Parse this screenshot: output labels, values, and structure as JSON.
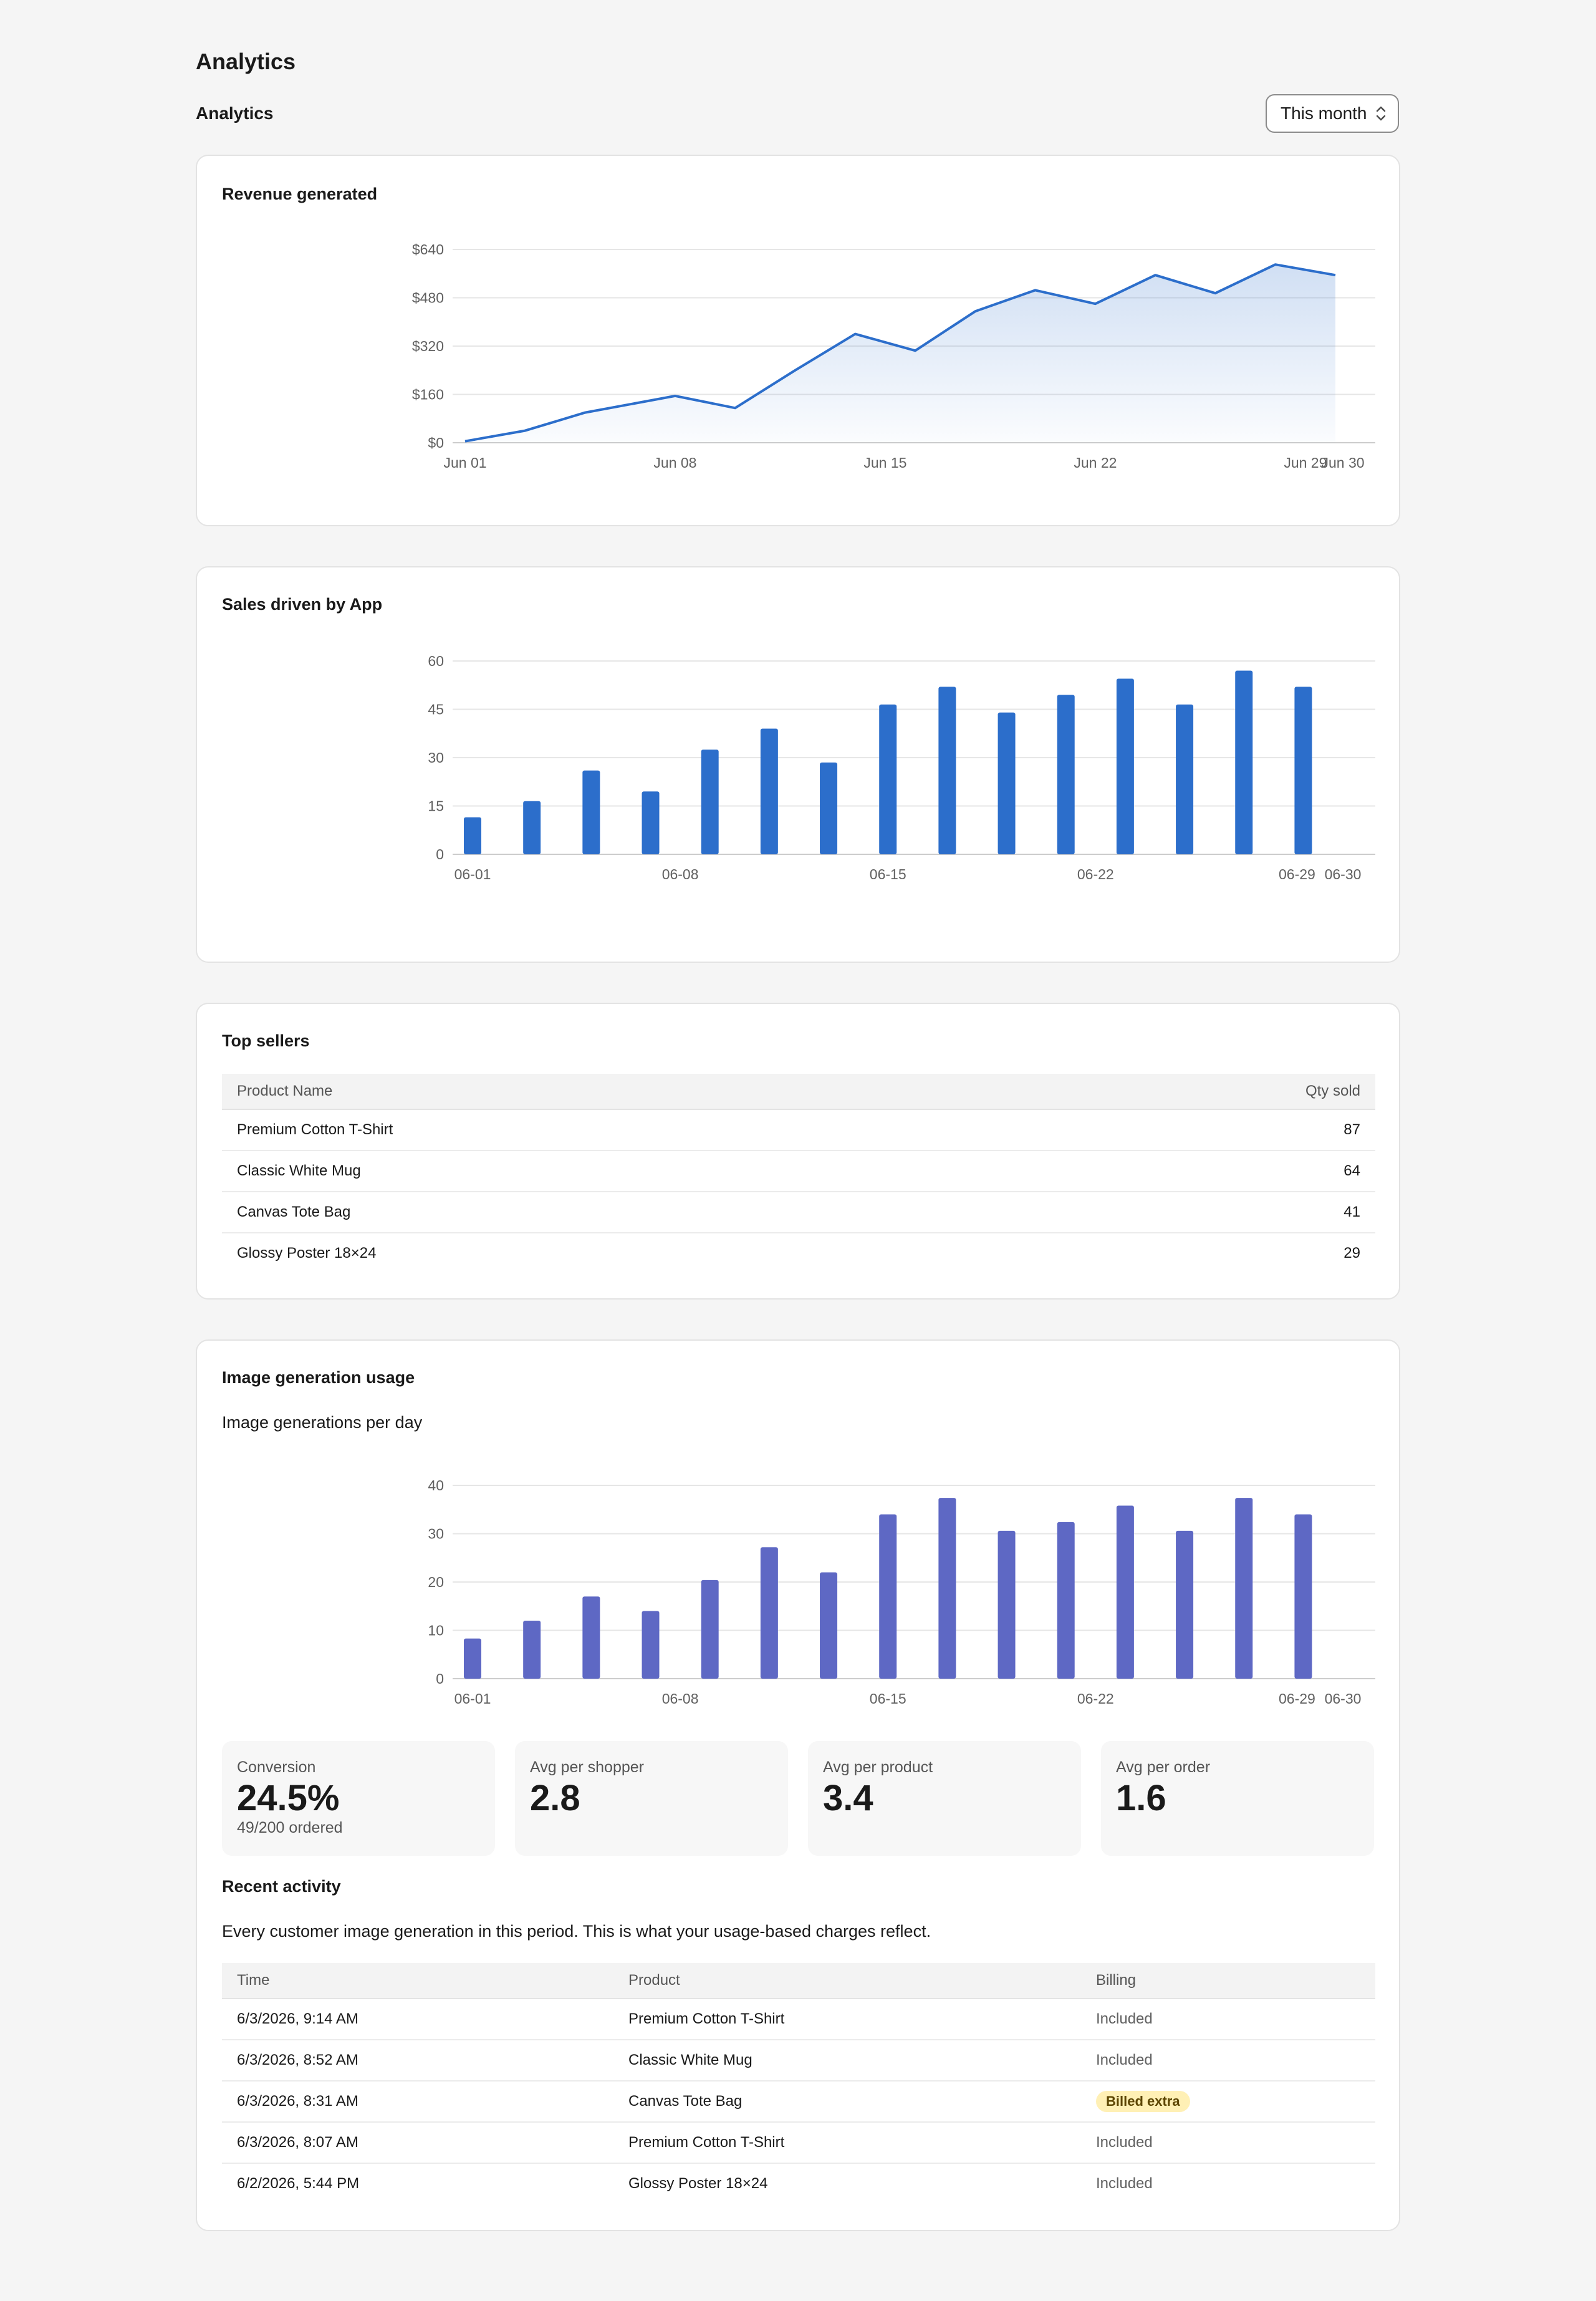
{
  "page": {
    "title": "Analytics",
    "section_title": "Analytics",
    "period": {
      "selected": "This month"
    }
  },
  "revenue": {
    "title": "Revenue generated",
    "chart_data": {
      "type": "area",
      "x": [
        "Jun 01",
        "Jun 03",
        "Jun 05",
        "Jun 08",
        "Jun 10",
        "Jun 12",
        "Jun 14",
        "Jun 16",
        "Jun 18",
        "Jun 20",
        "Jun 22",
        "Jun 24",
        "Jun 26",
        "Jun 28",
        "Jun 30"
      ],
      "values": [
        5,
        40,
        100,
        155,
        115,
        240,
        360,
        305,
        435,
        505,
        460,
        555,
        495,
        590,
        555
      ],
      "ylim": [
        0,
        640
      ],
      "yticks": [
        "$0",
        "$160",
        "$320",
        "$480",
        "$640"
      ],
      "xticks": [
        "Jun 01",
        "Jun 08",
        "Jun 15",
        "Jun 22",
        "Jun 29",
        "Jun 30"
      ],
      "color": "#2c6ecb",
      "grid": true
    }
  },
  "sales": {
    "title": "Sales driven by App",
    "chart_data": {
      "type": "bar",
      "categories": [
        "06-01",
        "06-03",
        "06-05",
        "06-07",
        "06-09",
        "06-11",
        "06-13",
        "06-15",
        "06-17",
        "06-19",
        "06-21",
        "06-23",
        "06-25",
        "06-27",
        "06-29"
      ],
      "values": [
        11.5,
        16.5,
        26,
        19.5,
        32.5,
        39,
        28.5,
        46.5,
        52,
        44,
        49.5,
        54.5,
        46.5,
        57,
        52
      ],
      "ylim": [
        0,
        60
      ],
      "yticks": [
        "0",
        "15",
        "30",
        "45",
        "60"
      ],
      "xticks": [
        "06-01",
        "06-08",
        "06-15",
        "06-22",
        "06-29",
        "06-30"
      ],
      "color": "#2c6ecb",
      "grid": true
    }
  },
  "top_sellers": {
    "title": "Top sellers",
    "columns": [
      "Product Name",
      "Qty sold"
    ],
    "rows": [
      [
        "Premium Cotton T-Shirt",
        "87"
      ],
      [
        "Classic White Mug",
        "64"
      ],
      [
        "Canvas Tote Bag",
        "41"
      ],
      [
        "Glossy Poster 18×24",
        "29"
      ]
    ]
  },
  "image_usage": {
    "title": "Image generation usage",
    "subtitle": "Image generations per day",
    "chart_data": {
      "type": "bar",
      "categories": [
        "06-01",
        "06-03",
        "06-05",
        "06-07",
        "06-09",
        "06-11",
        "06-13",
        "06-15",
        "06-17",
        "06-19",
        "06-21",
        "06-23",
        "06-25",
        "06-27",
        "06-29"
      ],
      "values": [
        8.3,
        12,
        17,
        14,
        20.4,
        27.2,
        22,
        34,
        37.4,
        30.6,
        32.4,
        35.8,
        30.6,
        37.4,
        34
      ],
      "ylim": [
        0,
        40
      ],
      "yticks": [
        "0",
        "10",
        "20",
        "30",
        "40"
      ],
      "xticks": [
        "06-01",
        "06-08",
        "06-15",
        "06-22",
        "06-29",
        "06-30"
      ],
      "color": "#5e68c4",
      "grid": true
    },
    "stats": [
      {
        "label": "Conversion",
        "value": "24.5%",
        "sub": "49/200 ordered"
      },
      {
        "label": "Avg per shopper",
        "value": "2.8",
        "sub": ""
      },
      {
        "label": "Avg per product",
        "value": "3.4",
        "sub": ""
      },
      {
        "label": "Avg per order",
        "value": "1.6",
        "sub": ""
      }
    ],
    "recent": {
      "title": "Recent activity",
      "description": "Every customer image generation in this period. This is what your usage-based charges reflect.",
      "columns": [
        "Time",
        "Product",
        "Billing"
      ],
      "rows": [
        [
          "6/3/2026, 9:14 AM",
          "Premium Cotton T-Shirt",
          "Included"
        ],
        [
          "6/3/2026, 8:52 AM",
          "Classic White Mug",
          "Included"
        ],
        [
          "6/3/2026, 8:31 AM",
          "Canvas Tote Bag",
          "Billed extra"
        ],
        [
          "6/3/2026, 8:07 AM",
          "Premium Cotton T-Shirt",
          "Included"
        ],
        [
          "6/2/2026, 5:44 PM",
          "Glossy Poster 18×24",
          "Included"
        ]
      ]
    }
  }
}
